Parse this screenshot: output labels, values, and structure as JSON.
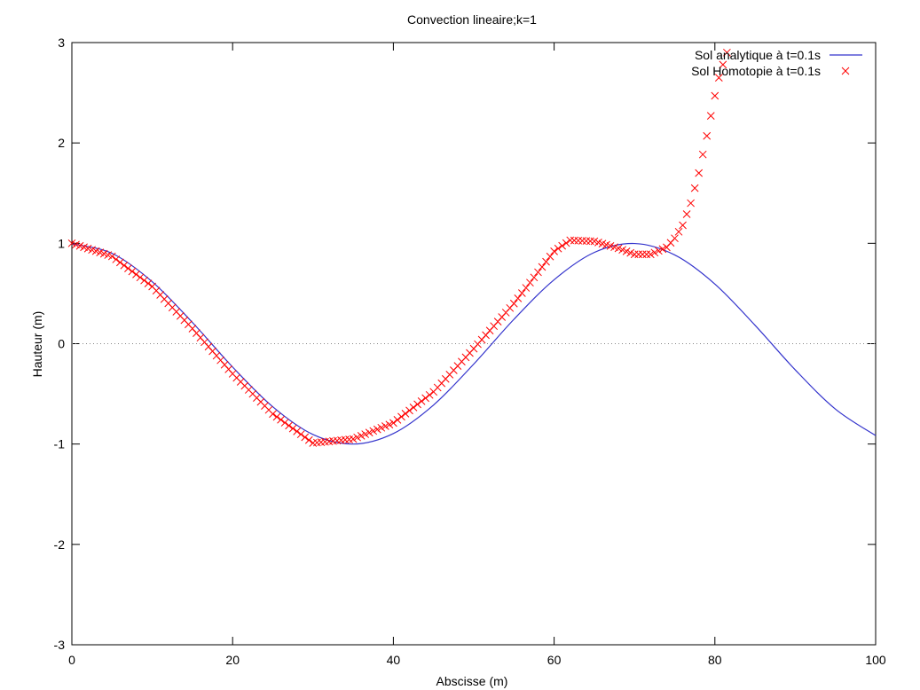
{
  "chart_data": {
    "type": "line",
    "title": "Convection lineaire;k=1",
    "xlabel": "Abscisse (m)",
    "ylabel": "Hauteur (m)",
    "xlim": [
      0,
      100
    ],
    "ylim": [
      -3,
      3
    ],
    "xticks": [
      0,
      20,
      40,
      60,
      80,
      100
    ],
    "yticks": [
      -3,
      -2,
      -1,
      0,
      1,
      2,
      3
    ],
    "zero_line": true,
    "grid": false,
    "legend_position": "top-right",
    "series": [
      {
        "name": "Sol analytique à t=0.1s",
        "style": "line",
        "color": "#3333cc",
        "x": [
          0,
          5,
          10,
          15,
          20,
          25,
          30,
          35,
          40,
          45,
          50,
          55,
          60,
          65,
          70,
          75,
          80,
          85,
          90,
          95,
          100
        ],
        "y": [
          0.995,
          0.9,
          0.617,
          0.211,
          -0.233,
          -0.629,
          -0.905,
          -1.0,
          -0.895,
          -0.611,
          -0.203,
          0.243,
          0.637,
          0.909,
          0.998,
          0.884,
          0.594,
          0.183,
          -0.261,
          -0.652,
          -0.916
        ]
      },
      {
        "name": "Sol Homotopie à t=0.1s",
        "style": "markers-x",
        "color": "#ff0000",
        "x": [
          0,
          5,
          10,
          15,
          20,
          25,
          30,
          35,
          40,
          45,
          50,
          55,
          60,
          62,
          65,
          68,
          70,
          72,
          74,
          75,
          76,
          77,
          78,
          79,
          80,
          80.5,
          81,
          81.5
        ],
        "y": [
          1.0,
          0.87,
          0.57,
          0.15,
          -0.3,
          -0.7,
          -0.99,
          -0.95,
          -0.79,
          -0.48,
          -0.05,
          0.4,
          0.92,
          1.03,
          1.02,
          0.95,
          0.89,
          0.89,
          0.96,
          1.05,
          1.18,
          1.4,
          1.7,
          2.07,
          2.47,
          2.65,
          2.78,
          2.9
        ]
      }
    ]
  }
}
